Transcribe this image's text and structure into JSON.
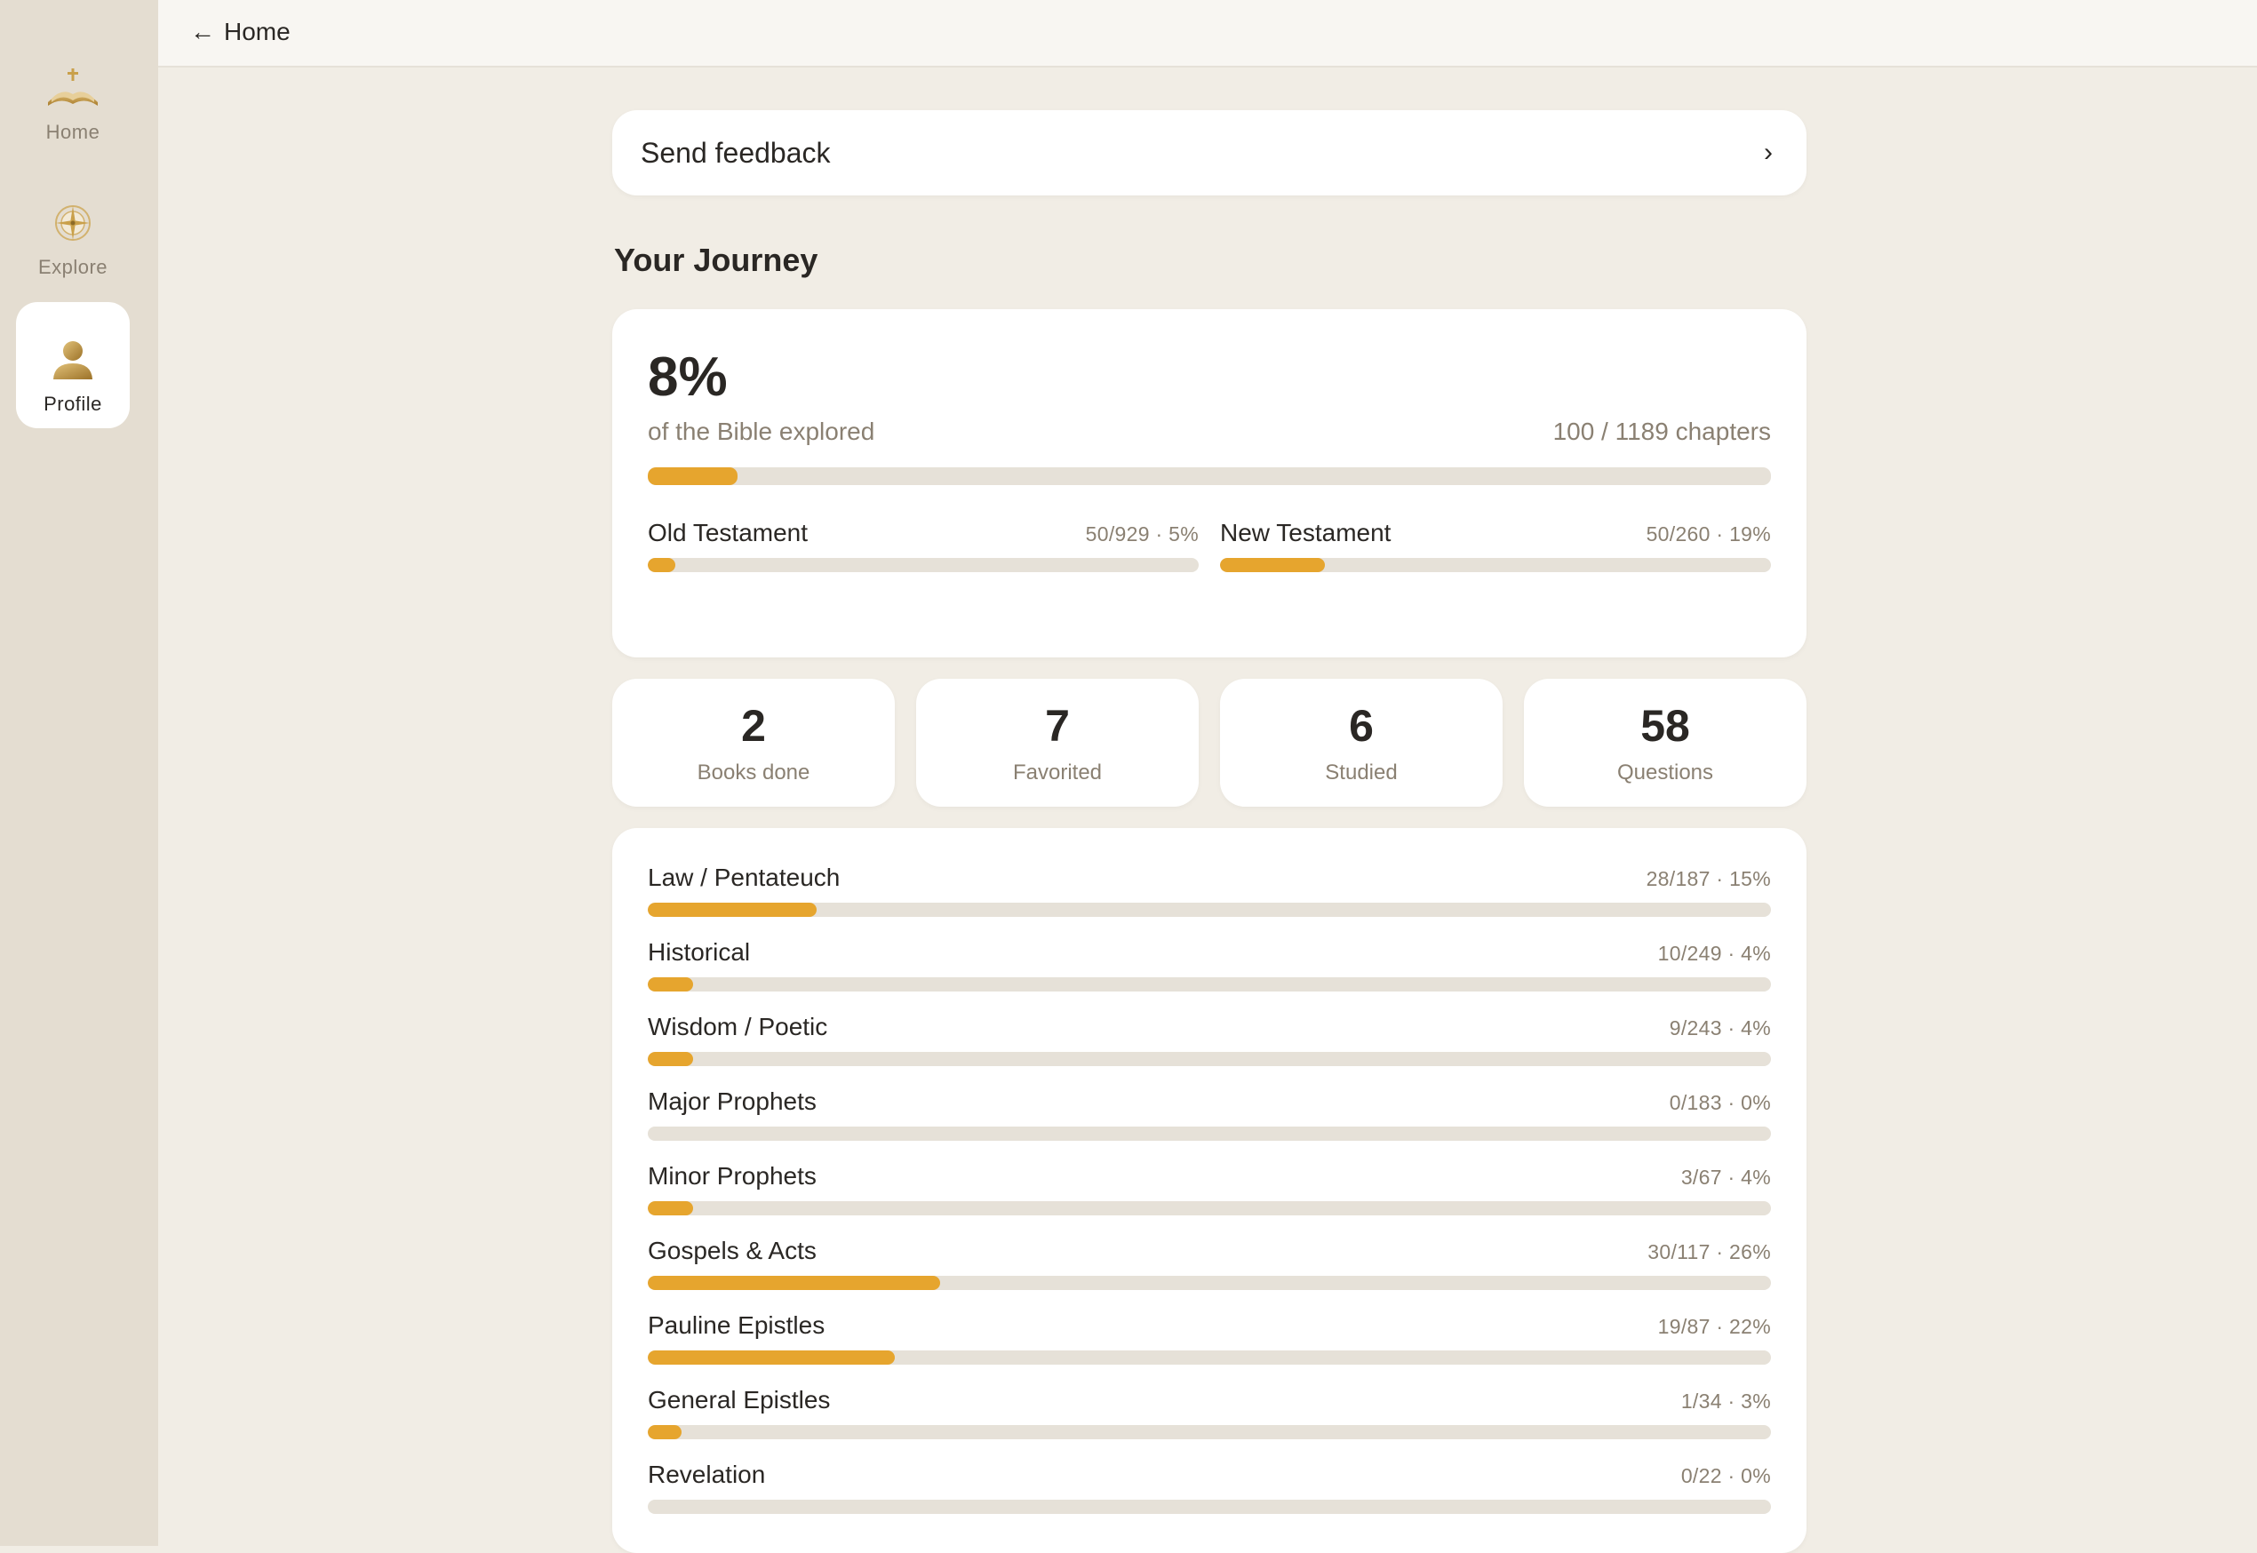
{
  "colors": {
    "accent": "#e6a52e",
    "track": "#e6e1d8",
    "background": "#f1ede5",
    "sidebar": "#e4ddd1"
  },
  "sidebar": {
    "items": [
      {
        "label": "Home",
        "icon": "open-bible-icon"
      },
      {
        "label": "Explore",
        "icon": "compass-icon"
      },
      {
        "label": "Profile",
        "icon": "person-icon",
        "active": true
      }
    ]
  },
  "topbar": {
    "back_label": "Home"
  },
  "feedback": {
    "label": "Send feedback"
  },
  "journey": {
    "title": "Your Journey",
    "percent_text": "8%",
    "percent": 8,
    "subtitle": "of the Bible explored",
    "chapters": "100 / 1189 chapters",
    "testaments": [
      {
        "name": "Old Testament",
        "stat": "50/929 · 5%",
        "percent": 5
      },
      {
        "name": "New Testament",
        "stat": "50/260 · 19%",
        "percent": 19
      }
    ]
  },
  "stats": [
    {
      "value": "2",
      "label": "Books done"
    },
    {
      "value": "7",
      "label": "Favorited"
    },
    {
      "value": "6",
      "label": "Studied"
    },
    {
      "value": "58",
      "label": "Questions"
    }
  ],
  "categories": [
    {
      "name": "Law / Pentateuch",
      "stat": "28/187 · 15%",
      "percent": 15
    },
    {
      "name": "Historical",
      "stat": "10/249 · 4%",
      "percent": 4
    },
    {
      "name": "Wisdom / Poetic",
      "stat": "9/243 · 4%",
      "percent": 4
    },
    {
      "name": "Major Prophets",
      "stat": "0/183 · 0%",
      "percent": 0
    },
    {
      "name": "Minor Prophets",
      "stat": "3/67 · 4%",
      "percent": 4
    },
    {
      "name": "Gospels & Acts",
      "stat": "30/117 · 26%",
      "percent": 26
    },
    {
      "name": "Pauline Epistles",
      "stat": "19/87 · 22%",
      "percent": 22
    },
    {
      "name": "General Epistles",
      "stat": "1/34 · 3%",
      "percent": 3
    },
    {
      "name": "Revelation",
      "stat": "0/22 · 0%",
      "percent": 0
    }
  ]
}
